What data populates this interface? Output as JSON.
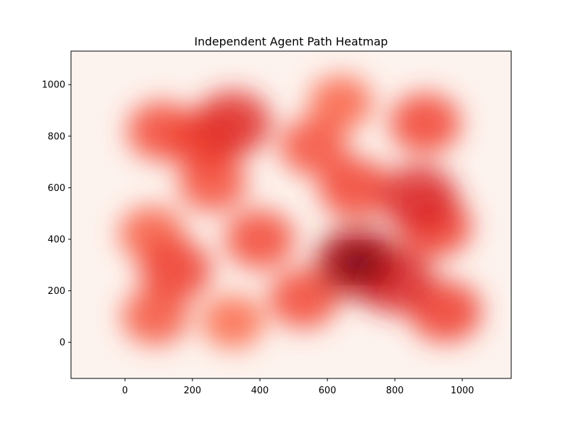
{
  "chart_data": {
    "type": "heatmap",
    "title": "Independent Agent Path Heatmap",
    "xlabel": "",
    "ylabel": "",
    "xlim": [
      -160,
      1145
    ],
    "ylim": [
      -140,
      1130
    ],
    "x_ticks": [
      0,
      200,
      400,
      600,
      800,
      1000
    ],
    "y_ticks": [
      0,
      200,
      400,
      600,
      800,
      1000
    ],
    "colormap": "Reds",
    "grid": false,
    "background_color": "#fdf3ee",
    "hotspots": [
      {
        "x": 690,
        "y": 310,
        "value": 1.0
      },
      {
        "x": 800,
        "y": 240,
        "value": 0.75
      },
      {
        "x": 870,
        "y": 560,
        "value": 0.75
      },
      {
        "x": 920,
        "y": 450,
        "value": 0.55
      },
      {
        "x": 950,
        "y": 120,
        "value": 0.55
      },
      {
        "x": 320,
        "y": 850,
        "value": 0.7
      },
      {
        "x": 240,
        "y": 780,
        "value": 0.55
      },
      {
        "x": 110,
        "y": 820,
        "value": 0.45
      },
      {
        "x": 890,
        "y": 850,
        "value": 0.5
      },
      {
        "x": 150,
        "y": 280,
        "value": 0.55
      },
      {
        "x": 80,
        "y": 420,
        "value": 0.3
      },
      {
        "x": 90,
        "y": 100,
        "value": 0.35
      },
      {
        "x": 530,
        "y": 170,
        "value": 0.45
      },
      {
        "x": 400,
        "y": 400,
        "value": 0.45
      },
      {
        "x": 680,
        "y": 600,
        "value": 0.5
      },
      {
        "x": 560,
        "y": 760,
        "value": 0.4
      },
      {
        "x": 260,
        "y": 620,
        "value": 0.4
      },
      {
        "x": 640,
        "y": 930,
        "value": 0.25
      },
      {
        "x": 320,
        "y": 80,
        "value": 0.2
      }
    ]
  }
}
